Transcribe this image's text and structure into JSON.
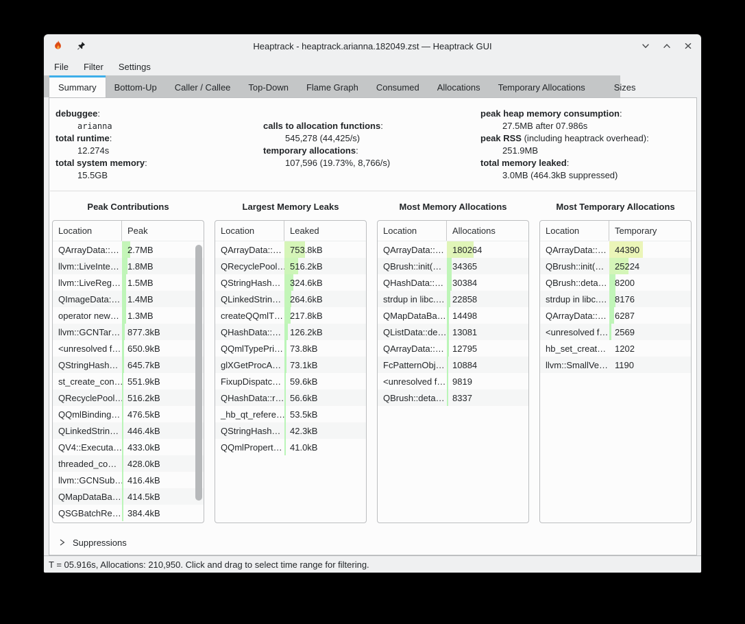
{
  "colors": {
    "accent": "#3daee9",
    "titlebar_bg": "#eff0f1",
    "pane_bg": "#fcfcfc",
    "tabstrip_bg": "#c4c6c7"
  },
  "window": {
    "title": "Heaptrack - heaptrack.arianna.182049.zst — Heaptrack GUI",
    "icons": [
      "heaptrack-flame-icon",
      "pin-icon"
    ],
    "controls": [
      "minimize",
      "maximize",
      "close"
    ]
  },
  "menu": {
    "items": [
      "File",
      "Filter",
      "Settings"
    ]
  },
  "tabs": {
    "active": "Summary",
    "items": [
      "Summary",
      "Bottom-Up",
      "Caller / Callee",
      "Top-Down",
      "Flame Graph",
      "Consumed",
      "Allocations",
      "Temporary Allocations",
      "Sizes"
    ]
  },
  "summary": {
    "columns": [
      {
        "entries": [
          {
            "label": "debuggee",
            "value": "arianna",
            "mono": true
          },
          {
            "label": "total runtime",
            "value": "12.274s"
          },
          {
            "label": "total system memory",
            "value": "15.5GB"
          }
        ]
      },
      {
        "entries": [
          {
            "label": "calls to allocation functions",
            "value": "545,278 (44,425/s)"
          },
          {
            "label": "temporary allocations",
            "value": "107,596 (19.73%, 8,766/s)"
          }
        ]
      },
      {
        "entries": [
          {
            "label": "peak heap memory consumption",
            "value": "27.5MB after 07.986s"
          },
          {
            "label": "peak RSS",
            "label_suffix": " (including heaptrack overhead)",
            "value": "251.9MB"
          },
          {
            "label": "total memory leaked",
            "value": "3.0MB (464.3kB suppressed)"
          }
        ]
      }
    ]
  },
  "tables": [
    {
      "title": "Peak Contributions",
      "columns": [
        "Location",
        "Peak"
      ],
      "scale_total": 27500,
      "has_scrollbar": true,
      "rows": [
        [
          "QArrayData::…",
          "2.7MB"
        ],
        [
          "llvm::LiveInte…",
          "1.8MB"
        ],
        [
          "llvm::LiveReg…",
          "1.5MB"
        ],
        [
          "QImageData:…",
          "1.4MB"
        ],
        [
          "operator new…",
          "1.3MB"
        ],
        [
          "llvm::GCNTar…",
          "877.3kB"
        ],
        [
          "<unresolved f…",
          "650.9kB"
        ],
        [
          "QStringHash…",
          "645.7kB"
        ],
        [
          "st_create_con…",
          "551.9kB"
        ],
        [
          "QRecyclePool…",
          "516.2kB"
        ],
        [
          "QQmlBinding…",
          "476.5kB"
        ],
        [
          "QLinkedStrin…",
          "446.4kB"
        ],
        [
          "QV4::Executa…",
          "433.0kB"
        ],
        [
          "threaded_co…",
          "428.0kB"
        ],
        [
          "llvm::GCNSub…",
          "416.4kB"
        ],
        [
          "QMapDataBa…",
          "414.5kB"
        ],
        [
          "QSGBatchRe…",
          "384.4kB"
        ]
      ]
    },
    {
      "title": "Largest Memory Leaks",
      "columns": [
        "Location",
        "Leaked"
      ],
      "scale_total": 3000,
      "has_scrollbar": false,
      "rows": [
        [
          "QArrayData::…",
          "753.8kB"
        ],
        [
          "QRecyclePool…",
          "516.2kB"
        ],
        [
          "QStringHash…",
          "324.6kB"
        ],
        [
          "QLinkedStrin…",
          "264.6kB"
        ],
        [
          "createQQmlT…",
          "217.8kB"
        ],
        [
          "QHashData::…",
          "126.2kB"
        ],
        [
          "QQmlTypePri…",
          "73.8kB"
        ],
        [
          "glXGetProcA…",
          "73.1kB"
        ],
        [
          "FixupDispatc…",
          "59.6kB"
        ],
        [
          "QHashData::r…",
          "56.6kB"
        ],
        [
          "_hb_qt_refere…",
          "53.5kB"
        ],
        [
          "QStringHash…",
          "42.3kB"
        ],
        [
          "QQmlPropert…",
          "41.0kB"
        ]
      ]
    },
    {
      "title": "Most Memory Allocations",
      "columns": [
        "Location",
        "Allocations"
      ],
      "scale_total": 545278,
      "has_scrollbar": false,
      "rows": [
        [
          "QArrayData::…",
          "180264"
        ],
        [
          "QBrush::init(…",
          "34365"
        ],
        [
          "QHashData::…",
          "30384"
        ],
        [
          "strdup in libc.…",
          "22858"
        ],
        [
          "QMapDataBa…",
          "14498"
        ],
        [
          "QListData::de…",
          "13081"
        ],
        [
          "QArrayData::…",
          "12795"
        ],
        [
          "FcPatternObj…",
          "10884"
        ],
        [
          "<unresolved f…",
          "9819"
        ],
        [
          "QBrush::deta…",
          "8337"
        ]
      ]
    },
    {
      "title": "Most Temporary Allocations",
      "columns": [
        "Location",
        "Temporary"
      ],
      "scale_total": 107596,
      "has_scrollbar": false,
      "rows": [
        [
          "QArrayData::…",
          "44390"
        ],
        [
          "QBrush::init(…",
          "25224"
        ],
        [
          "QBrush::deta…",
          "8200"
        ],
        [
          "strdup in libc.…",
          "8176"
        ],
        [
          "QArrayData::…",
          "6287"
        ],
        [
          "<unresolved f…",
          "2569"
        ],
        [
          "hb_set_creat…",
          "1202"
        ],
        [
          "llvm::SmallVe…",
          "1190"
        ]
      ]
    }
  ],
  "suppressions": {
    "label": "Suppressions"
  },
  "status_bar": {
    "text": "T = 05.916s, Allocations: 210,950. Click and drag to select time range for filtering."
  }
}
